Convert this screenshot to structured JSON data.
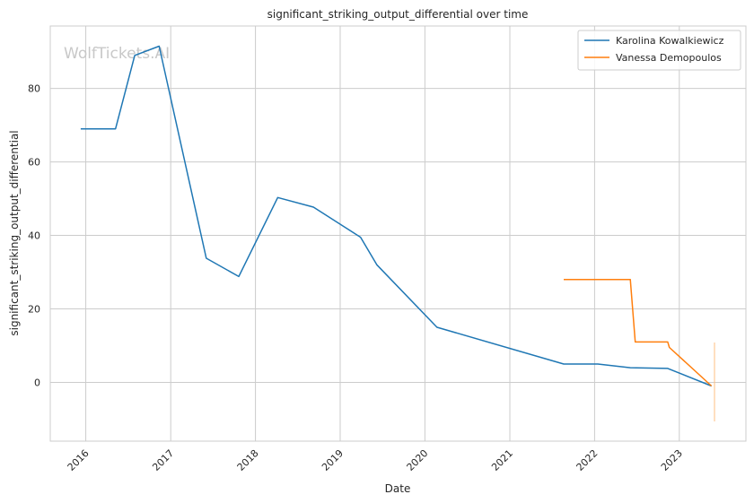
{
  "chart_data": {
    "type": "line",
    "title": "significant_striking_output_differential over time",
    "xlabel": "Date",
    "ylabel": "significant_striking_output_differential",
    "watermark": "WolfTickets.AI",
    "xlim": [
      "2015-08-01",
      "2023-10-15"
    ],
    "ylim": [
      -16,
      97
    ],
    "x_ticks": [
      "2016",
      "2017",
      "2018",
      "2019",
      "2020",
      "2021",
      "2022",
      "2023"
    ],
    "y_ticks": [
      0,
      20,
      40,
      60,
      80
    ],
    "grid": true,
    "legend_position": "top-right",
    "series": [
      {
        "name": "Karolina Kowalkiewicz",
        "color": "#1f77b4",
        "points": [
          [
            "2015-12-10",
            69
          ],
          [
            "2016-05-08",
            69
          ],
          [
            "2016-07-30",
            89
          ],
          [
            "2016-11-12",
            91.5
          ],
          [
            "2017-06-03",
            33.8
          ],
          [
            "2017-10-21",
            28.8
          ],
          [
            "2018-04-07",
            50.3
          ],
          [
            "2018-09-08",
            47.7
          ],
          [
            "2019-03-30",
            39.5
          ],
          [
            "2019-06-08",
            32
          ],
          [
            "2020-02-22",
            15
          ],
          [
            "2021-08-21",
            5
          ],
          [
            "2022-01-15",
            5
          ],
          [
            "2022-06-04",
            4
          ],
          [
            "2022-11-12",
            3.8
          ],
          [
            "2023-05-20",
            -1
          ]
        ]
      },
      {
        "name": "Vanessa Demopoulos",
        "color": "#ff7f0e",
        "points": [
          [
            "2021-08-21",
            28
          ],
          [
            "2022-06-04",
            28
          ],
          [
            "2022-06-25",
            11
          ],
          [
            "2022-11-12",
            11
          ],
          [
            "2022-11-19",
            9.5
          ],
          [
            "2023-05-20",
            -1
          ]
        ]
      }
    ]
  }
}
